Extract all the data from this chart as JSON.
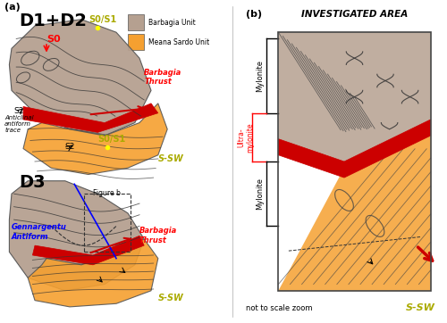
{
  "fig_width": 5.0,
  "fig_height": 3.62,
  "dpi": 100,
  "bg_color": "#ffffff",
  "barbagia_color": "#b5a090",
  "meana_color": "#f5a030",
  "thrust_red": "#cc0000",
  "title_a": "D1+D2",
  "title_d3": "D3",
  "label_s0": "S0",
  "label_s2a": "S2",
  "label_s2b": "S2",
  "label_s0s1a": "S0/S1",
  "label_s0s1b": "S0/S1",
  "label_barbagia_thrust_a": "Barbagia\nThrust",
  "label_anticlinal": "Anticlinal\nantiform\ntrace",
  "label_ssw_a": "S-SW",
  "label_ssw_d3": "S-SW",
  "label_ssw_b": "S-SW",
  "label_barbagia_unit": "Barbagia Unit",
  "label_meana_unit": "Meana Sardo Unit",
  "label_barbagia_thrust_d3": "Barbagia\nThrust",
  "label_gennargentu": "Gennargentu\nAntiform",
  "label_figure_b": "Figure b",
  "panel_b_title": "INVESTIGATED AREA",
  "label_mylonite_top": "Mylonite",
  "label_ultramylonite": "Ultra-\nmylonite",
  "label_mylonite_bot": "Mylonite",
  "label_not_to_scale": "not to scale zoom",
  "panel_a_label": "(a)",
  "panel_b_label": "(b)"
}
